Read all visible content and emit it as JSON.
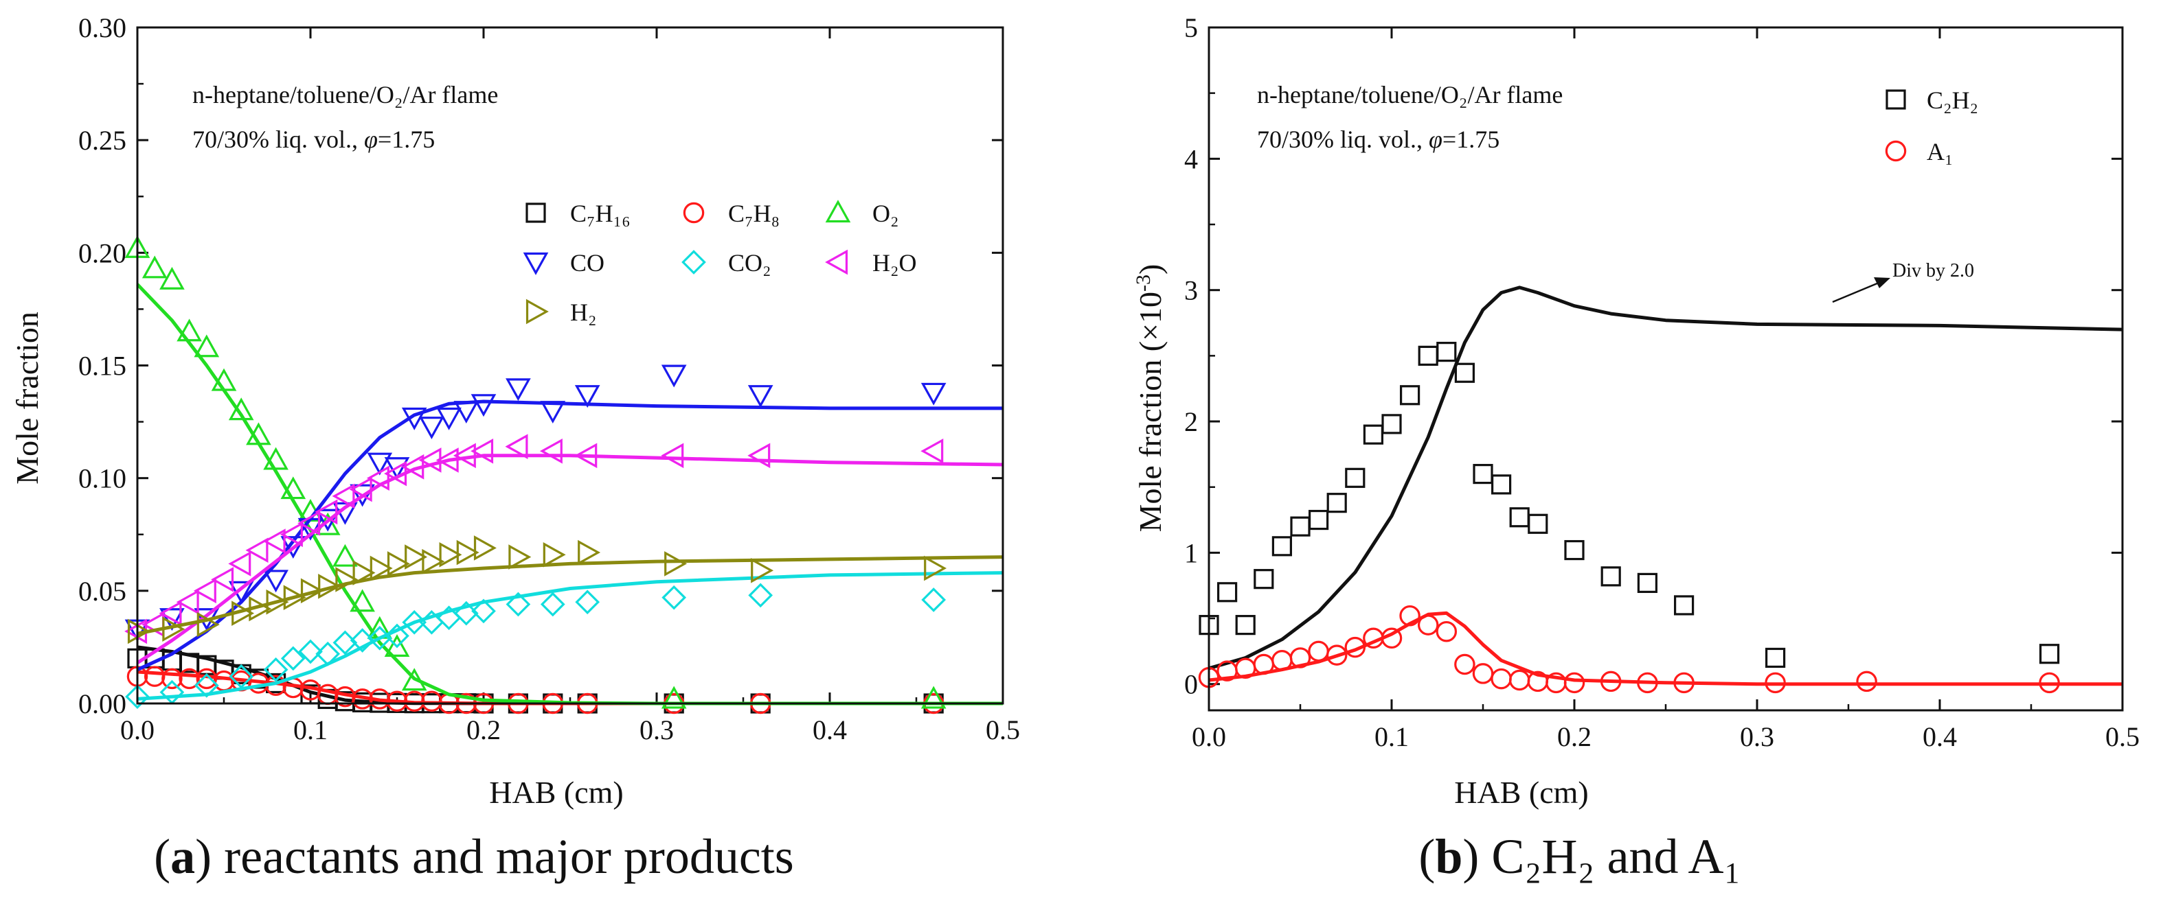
{
  "panels": {
    "a": {
      "caption": {
        "letter": "a",
        "text": "reactants and major products"
      },
      "annotations": {
        "line1": "n-heptane/toluene/O₂/Ar flame",
        "line2_prefix": "70/30% liq. vol., ",
        "line2_phi": "φ",
        "line2_suffix": "=1.75"
      }
    },
    "b": {
      "caption": {
        "letter": "b",
        "text": "C₂H₂ and A₁"
      },
      "annotations": {
        "line1": "n-heptane/toluene/O₂/Ar flame",
        "line2_prefix": "70/30% liq. vol., ",
        "line2_phi": "φ",
        "line2_suffix": "=1.75",
        "arrow_note": "Div by 2.0"
      }
    }
  },
  "chart_data": [
    {
      "id": "a",
      "type": "scatter",
      "xlabel": "HAB (cm)",
      "ylabel": "Mole fraction",
      "xlim": [
        0,
        0.5
      ],
      "ylim": [
        0,
        0.3
      ],
      "xticks": [
        0.0,
        0.1,
        0.2,
        0.3,
        0.4,
        0.5
      ],
      "yticks": [
        0.0,
        0.05,
        0.1,
        0.15,
        0.2,
        0.25,
        0.3
      ],
      "xtick_labels": [
        "0.0",
        "0.1",
        "0.2",
        "0.3",
        "0.4",
        "0.5"
      ],
      "ytick_labels": [
        "0.00",
        "0.05",
        "0.10",
        "0.15",
        "0.20",
        "0.25",
        "0.30"
      ],
      "legend_position": "center-right",
      "series": [
        {
          "name": "C7H16",
          "label": "C₇H₁₆",
          "color": "#111111",
          "marker": "square",
          "x": [
            0.0,
            0.01,
            0.02,
            0.03,
            0.04,
            0.05,
            0.06,
            0.07,
            0.08,
            0.1,
            0.11,
            0.12,
            0.13,
            0.14,
            0.15,
            0.16,
            0.17,
            0.18,
            0.19,
            0.2,
            0.22,
            0.24,
            0.26,
            0.31,
            0.36,
            0.46
          ],
          "y": [
            0.02,
            0.02,
            0.019,
            0.018,
            0.017,
            0.015,
            0.013,
            0.011,
            0.009,
            0.004,
            0.002,
            0.001,
            0.0005,
            0.0003,
            0.0002,
            0.0001,
            0.0001,
            0.0001,
            0.0001,
            0.0,
            0.0,
            0.0,
            0.0,
            0.0,
            0.0,
            0.0
          ],
          "model_x": [
            0,
            0.02,
            0.04,
            0.06,
            0.08,
            0.1,
            0.12,
            0.14,
            0.16,
            0.2,
            0.3,
            0.4,
            0.5
          ],
          "model_y": [
            0.025,
            0.023,
            0.02,
            0.016,
            0.011,
            0.005,
            0.0015,
            0.0004,
            0.0001,
            0,
            0,
            0,
            0
          ]
        },
        {
          "name": "C7H8",
          "label": "C₇H₈",
          "color": "#ff1a1a",
          "marker": "circle",
          "x": [
            0.0,
            0.01,
            0.02,
            0.03,
            0.04,
            0.05,
            0.06,
            0.07,
            0.08,
            0.09,
            0.1,
            0.11,
            0.12,
            0.13,
            0.14,
            0.15,
            0.16,
            0.17,
            0.18,
            0.19,
            0.2,
            0.22,
            0.24,
            0.26,
            0.31,
            0.36,
            0.46
          ],
          "y": [
            0.012,
            0.012,
            0.011,
            0.011,
            0.011,
            0.01,
            0.01,
            0.009,
            0.008,
            0.007,
            0.006,
            0.004,
            0.003,
            0.002,
            0.002,
            0.001,
            0.001,
            0.001,
            0.0,
            0.0,
            0.0,
            0.0,
            0.0,
            0.0,
            0.0,
            0.0,
            0.0
          ],
          "model_x": [
            0,
            0.04,
            0.08,
            0.1,
            0.12,
            0.14,
            0.16,
            0.2,
            0.3,
            0.5
          ],
          "model_y": [
            0.014,
            0.012,
            0.009,
            0.007,
            0.004,
            0.0015,
            0.0004,
            0,
            0,
            0
          ]
        },
        {
          "name": "O2",
          "label": "O₂",
          "color": "#22dd22",
          "marker": "triangle-up",
          "x": [
            0.0,
            0.01,
            0.02,
            0.03,
            0.04,
            0.05,
            0.06,
            0.07,
            0.08,
            0.09,
            0.1,
            0.11,
            0.12,
            0.13,
            0.14,
            0.15,
            0.16,
            0.31,
            0.46
          ],
          "y": [
            0.202,
            0.193,
            0.188,
            0.165,
            0.158,
            0.143,
            0.13,
            0.119,
            0.108,
            0.095,
            0.085,
            0.079,
            0.065,
            0.045,
            0.033,
            0.025,
            0.01,
            0.002,
            0.002
          ],
          "model_x": [
            0,
            0.02,
            0.04,
            0.06,
            0.08,
            0.1,
            0.12,
            0.14,
            0.16,
            0.18,
            0.2,
            0.25,
            0.3,
            0.5
          ],
          "model_y": [
            0.186,
            0.17,
            0.15,
            0.128,
            0.103,
            0.077,
            0.05,
            0.027,
            0.011,
            0.004,
            0.0015,
            0.0003,
            0,
            0
          ]
        },
        {
          "name": "CO",
          "label": "CO",
          "color": "#1a1aee",
          "marker": "triangle-down",
          "x": [
            0.0,
            0.02,
            0.04,
            0.06,
            0.08,
            0.09,
            0.1,
            0.11,
            0.12,
            0.13,
            0.14,
            0.15,
            0.16,
            0.17,
            0.18,
            0.19,
            0.2,
            0.22,
            0.24,
            0.26,
            0.31,
            0.36,
            0.46
          ],
          "y": [
            0.033,
            0.038,
            0.038,
            0.05,
            0.055,
            0.07,
            0.078,
            0.082,
            0.085,
            0.093,
            0.107,
            0.105,
            0.127,
            0.123,
            0.127,
            0.13,
            0.133,
            0.14,
            0.13,
            0.137,
            0.146,
            0.137,
            0.138
          ],
          "model_x": [
            0,
            0.02,
            0.04,
            0.06,
            0.08,
            0.1,
            0.12,
            0.14,
            0.16,
            0.18,
            0.2,
            0.25,
            0.3,
            0.4,
            0.5
          ],
          "model_y": [
            0.015,
            0.022,
            0.032,
            0.045,
            0.062,
            0.082,
            0.102,
            0.118,
            0.128,
            0.133,
            0.134,
            0.133,
            0.132,
            0.131,
            0.131
          ]
        },
        {
          "name": "CO2",
          "label": "CO₂",
          "color": "#11dddd",
          "marker": "diamond",
          "x": [
            0.0,
            0.02,
            0.04,
            0.06,
            0.08,
            0.09,
            0.1,
            0.11,
            0.12,
            0.13,
            0.14,
            0.15,
            0.16,
            0.17,
            0.18,
            0.19,
            0.2,
            0.22,
            0.24,
            0.26,
            0.31,
            0.36,
            0.46
          ],
          "y": [
            0.003,
            0.005,
            0.008,
            0.012,
            0.015,
            0.02,
            0.023,
            0.022,
            0.027,
            0.028,
            0.029,
            0.03,
            0.036,
            0.036,
            0.038,
            0.04,
            0.041,
            0.044,
            0.044,
            0.045,
            0.047,
            0.048,
            0.046
          ],
          "model_x": [
            0,
            0.04,
            0.08,
            0.1,
            0.12,
            0.14,
            0.16,
            0.18,
            0.2,
            0.25,
            0.3,
            0.4,
            0.5
          ],
          "model_y": [
            0.002,
            0.004,
            0.009,
            0.014,
            0.021,
            0.029,
            0.036,
            0.041,
            0.045,
            0.051,
            0.054,
            0.057,
            0.058
          ]
        },
        {
          "name": "H2O",
          "label": "H₂O",
          "color": "#ee22ee",
          "marker": "triangle-left",
          "x": [
            0.0,
            0.01,
            0.02,
            0.03,
            0.04,
            0.05,
            0.06,
            0.07,
            0.08,
            0.09,
            0.1,
            0.11,
            0.12,
            0.13,
            0.14,
            0.15,
            0.16,
            0.17,
            0.18,
            0.19,
            0.2,
            0.22,
            0.24,
            0.26,
            0.31,
            0.36,
            0.46
          ],
          "y": [
            0.032,
            0.035,
            0.04,
            0.045,
            0.05,
            0.055,
            0.062,
            0.068,
            0.072,
            0.075,
            0.08,
            0.085,
            0.092,
            0.095,
            0.1,
            0.102,
            0.105,
            0.108,
            0.108,
            0.11,
            0.112,
            0.114,
            0.112,
            0.11,
            0.11,
            0.11,
            0.112
          ],
          "model_x": [
            0,
            0.02,
            0.04,
            0.06,
            0.08,
            0.1,
            0.12,
            0.14,
            0.16,
            0.18,
            0.2,
            0.25,
            0.3,
            0.4,
            0.5
          ],
          "model_y": [
            0.018,
            0.028,
            0.039,
            0.051,
            0.063,
            0.075,
            0.087,
            0.097,
            0.104,
            0.108,
            0.11,
            0.11,
            0.109,
            0.107,
            0.106
          ]
        },
        {
          "name": "H2",
          "label": "H₂",
          "color": "#8a8a10",
          "marker": "triangle-right",
          "x": [
            0.0,
            0.02,
            0.04,
            0.06,
            0.07,
            0.08,
            0.09,
            0.1,
            0.11,
            0.12,
            0.13,
            0.14,
            0.15,
            0.16,
            0.17,
            0.18,
            0.19,
            0.2,
            0.22,
            0.24,
            0.26,
            0.31,
            0.36,
            0.46
          ],
          "y": [
            0.032,
            0.033,
            0.035,
            0.04,
            0.042,
            0.045,
            0.047,
            0.05,
            0.052,
            0.055,
            0.058,
            0.06,
            0.062,
            0.065,
            0.063,
            0.066,
            0.067,
            0.069,
            0.065,
            0.066,
            0.067,
            0.062,
            0.059,
            0.06
          ],
          "model_x": [
            0,
            0.02,
            0.04,
            0.06,
            0.08,
            0.1,
            0.12,
            0.14,
            0.16,
            0.18,
            0.2,
            0.25,
            0.3,
            0.4,
            0.5
          ],
          "model_y": [
            0.031,
            0.034,
            0.037,
            0.041,
            0.045,
            0.049,
            0.053,
            0.056,
            0.058,
            0.059,
            0.06,
            0.062,
            0.063,
            0.064,
            0.065
          ]
        }
      ]
    },
    {
      "id": "b",
      "type": "scatter",
      "xlabel": "HAB (cm)",
      "ylabel_prefix": "Mole fraction (×10",
      "ylabel_exp": "-3",
      "ylabel_suffix": ")",
      "xlim": [
        0,
        0.5
      ],
      "ylim": [
        -0.2,
        5
      ],
      "xticks": [
        0.0,
        0.1,
        0.2,
        0.3,
        0.4,
        0.5
      ],
      "yticks": [
        0,
        1,
        2,
        3,
        4,
        5
      ],
      "xtick_labels": [
        "0.0",
        "0.1",
        "0.2",
        "0.3",
        "0.4",
        "0.5"
      ],
      "ytick_labels": [
        "0",
        "1",
        "2",
        "3",
        "4",
        "5"
      ],
      "legend_position": "top-right",
      "series": [
        {
          "name": "C2H2",
          "label": "C₂H₂",
          "color": "#111111",
          "marker": "square",
          "x": [
            0.0,
            0.01,
            0.02,
            0.03,
            0.04,
            0.05,
            0.06,
            0.07,
            0.08,
            0.09,
            0.1,
            0.11,
            0.12,
            0.13,
            0.14,
            0.15,
            0.16,
            0.17,
            0.18,
            0.2,
            0.22,
            0.24,
            0.26,
            0.31,
            0.46
          ],
          "y": [
            0.45,
            0.7,
            0.45,
            0.8,
            1.05,
            1.2,
            1.25,
            1.38,
            1.57,
            1.9,
            1.98,
            2.2,
            2.5,
            2.53,
            2.37,
            1.6,
            1.52,
            1.27,
            1.22,
            1.02,
            0.82,
            0.77,
            0.6,
            0.2,
            0.23
          ],
          "model_x": [
            0,
            0.02,
            0.04,
            0.06,
            0.08,
            0.1,
            0.12,
            0.13,
            0.14,
            0.15,
            0.16,
            0.17,
            0.18,
            0.2,
            0.22,
            0.25,
            0.3,
            0.4,
            0.5
          ],
          "model_y": [
            0.12,
            0.2,
            0.34,
            0.55,
            0.85,
            1.28,
            1.88,
            2.25,
            2.6,
            2.85,
            2.98,
            3.02,
            2.98,
            2.88,
            2.82,
            2.77,
            2.74,
            2.73,
            2.7
          ]
        },
        {
          "name": "A1",
          "label": "A₁",
          "color": "#ff1a1a",
          "marker": "circle",
          "x": [
            0.0,
            0.01,
            0.02,
            0.03,
            0.04,
            0.05,
            0.06,
            0.07,
            0.08,
            0.09,
            0.1,
            0.11,
            0.12,
            0.13,
            0.14,
            0.15,
            0.16,
            0.17,
            0.18,
            0.19,
            0.2,
            0.22,
            0.24,
            0.26,
            0.31,
            0.36,
            0.46
          ],
          "y": [
            0.05,
            0.1,
            0.12,
            0.15,
            0.18,
            0.2,
            0.25,
            0.22,
            0.28,
            0.35,
            0.35,
            0.52,
            0.45,
            0.4,
            0.15,
            0.08,
            0.04,
            0.03,
            0.02,
            0.01,
            0.01,
            0.02,
            0.01,
            0.01,
            0.01,
            0.02,
            0.01
          ],
          "model_x": [
            0,
            0.02,
            0.04,
            0.06,
            0.08,
            0.1,
            0.11,
            0.12,
            0.13,
            0.14,
            0.15,
            0.16,
            0.18,
            0.2,
            0.25,
            0.3,
            0.5
          ],
          "model_y": [
            0.03,
            0.06,
            0.11,
            0.17,
            0.26,
            0.38,
            0.46,
            0.53,
            0.54,
            0.44,
            0.3,
            0.18,
            0.07,
            0.03,
            0.01,
            0.0,
            0.0
          ]
        }
      ]
    }
  ]
}
